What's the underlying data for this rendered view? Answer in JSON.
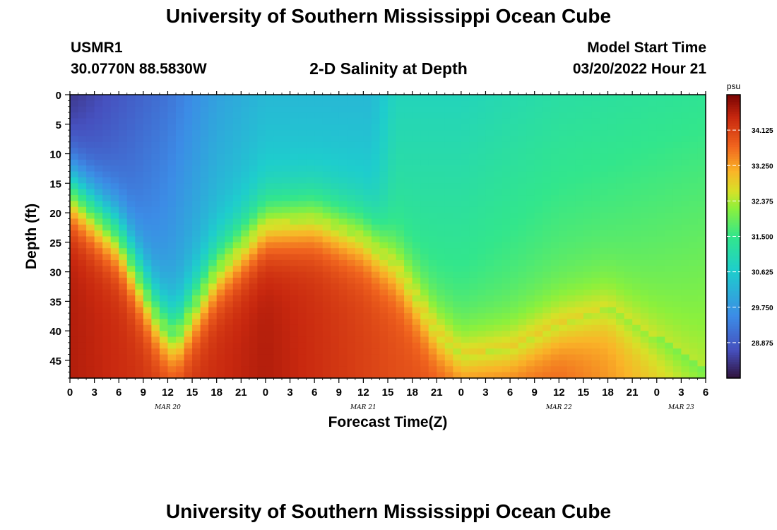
{
  "page": {
    "title_top": "University of Southern Mississippi Ocean Cube",
    "title_bottom": "University of Southern Mississippi Ocean Cube",
    "station": "USMR1",
    "coords": "30.0770N  88.5830W",
    "plot_title": "2-D Salinity at Depth",
    "model_start_label": "Model Start Time",
    "model_start_value": "03/20/2022 Hour 21"
  },
  "chart_data": {
    "type": "heatmap",
    "title": "2-D Salinity at Depth",
    "xlabel": "Forecast Time(Z)",
    "ylabel": "Depth (ft)",
    "x_tick_labels": [
      "0",
      "3",
      "6",
      "9",
      "12",
      "15",
      "18",
      "21",
      "0",
      "3",
      "6",
      "9",
      "12",
      "15",
      "18",
      "21",
      "0",
      "3",
      "6",
      "9",
      "12",
      "15",
      "18",
      "21",
      "0",
      "3",
      "6"
    ],
    "x_range_hours": [
      0,
      78
    ],
    "date_labels": [
      {
        "label": "MAR 20",
        "hour": 12
      },
      {
        "label": "MAR 21",
        "hour": 36
      },
      {
        "label": "MAR 22",
        "hour": 60
      },
      {
        "label": "MAR 23",
        "hour": 75
      }
    ],
    "y_tick_labels": [
      "0",
      "5",
      "10",
      "15",
      "20",
      "25",
      "30",
      "35",
      "40",
      "45"
    ],
    "y_ticks": [
      0,
      5,
      10,
      15,
      20,
      25,
      30,
      35,
      40,
      45
    ],
    "ylim": [
      0,
      48
    ],
    "y_inverted": true,
    "colorbar": {
      "unit": "psu",
      "min": 28.0,
      "max": 35.0,
      "ticks": [
        34.125,
        33.25,
        32.375,
        31.5,
        30.625,
        29.75,
        28.875
      ],
      "tick_labels": [
        "34.125",
        "33.250",
        "32.375",
        "31.500",
        "30.625",
        "29.750",
        "28.875"
      ]
    },
    "surface_salinity_psu": [
      {
        "hour": 0,
        "value": 28.4
      },
      {
        "hour": 6,
        "value": 28.8
      },
      {
        "hour": 12,
        "value": 29.2
      },
      {
        "hour": 18,
        "value": 29.9
      },
      {
        "hour": 24,
        "value": 30.3
      },
      {
        "hour": 30,
        "value": 30.3
      },
      {
        "hour": 37,
        "value": 30.3
      },
      {
        "hour": 40,
        "value": 30.9
      },
      {
        "hour": 48,
        "value": 30.9
      },
      {
        "hour": 60,
        "value": 31.2
      },
      {
        "hour": 78,
        "value": 31.4
      }
    ],
    "halocline_depth_ft": [
      {
        "hour": 0,
        "value": 16
      },
      {
        "hour": 6,
        "value": 24
      },
      {
        "hour": 11,
        "value": 38
      },
      {
        "hour": 13,
        "value": 41
      },
      {
        "hour": 18,
        "value": 30
      },
      {
        "hour": 24,
        "value": 22
      },
      {
        "hour": 30,
        "value": 21
      },
      {
        "hour": 36,
        "value": 24
      },
      {
        "hour": 40,
        "value": 29
      },
      {
        "hour": 45,
        "value": 40
      },
      {
        "hour": 48,
        "value": 44
      },
      {
        "hour": 54,
        "value": 43
      },
      {
        "hour": 60,
        "value": 39
      },
      {
        "hour": 66,
        "value": 36
      },
      {
        "hour": 72,
        "value": 41
      },
      {
        "hour": 78,
        "value": 46
      }
    ],
    "bottom_salinity_psu": [
      {
        "hour": 0,
        "value": 34.6
      },
      {
        "hour": 12,
        "value": 34.2
      },
      {
        "hour": 24,
        "value": 34.6
      },
      {
        "hour": 40,
        "value": 34.0
      },
      {
        "hour": 60,
        "value": 33.8
      },
      {
        "hour": 78,
        "value": 32.5
      }
    ]
  }
}
